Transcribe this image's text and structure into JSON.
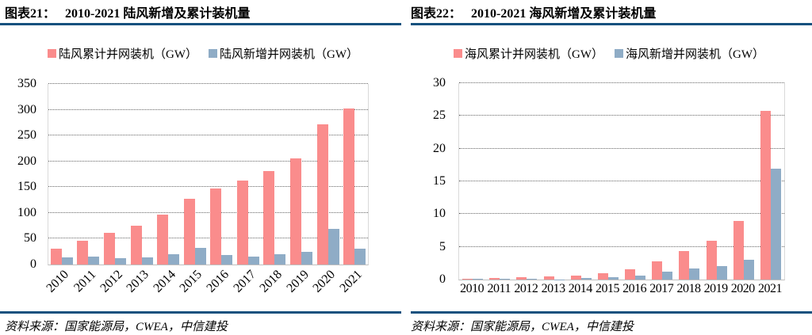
{
  "accent_rule_color": "#14517E",
  "charts": [
    {
      "title_label": "图表21：",
      "title_text": "2010-2021 陆风新增及累计装机量",
      "source": "资料来源：国家能源局，CWEA，中信建投",
      "chart_data": {
        "type": "bar",
        "categories": [
          "2010",
          "2011",
          "2012",
          "2013",
          "2014",
          "2015",
          "2016",
          "2017",
          "2018",
          "2019",
          "2020",
          "2021"
        ],
        "series": [
          {
            "name": "陆风累计并网装机（GW）",
            "color": "#FA8C8C",
            "values": [
              30,
              46,
              61,
              76,
              96,
              128,
              147,
              163,
              181,
              205,
              271,
              302
            ]
          },
          {
            "name": "陆风新增并网装机（GW）",
            "color": "#8FACC6",
            "values": [
              14,
              16,
              13,
              14,
              20,
              32,
              19,
              15,
              20,
              24,
              69,
              31
            ]
          }
        ],
        "title": "2010-2021 陆风新增及累计装机量",
        "xlabel": "",
        "ylabel": "",
        "ylim": [
          0,
          350
        ],
        "ytick_step": 50,
        "grid": "horizontal-dotted",
        "legend_position": "top-center",
        "x_label_rotation": -45
      }
    },
    {
      "title_label": "图表22：",
      "title_text": "2010-2021 海风新增及累计装机量",
      "source": "资料来源：国家能源局，CWEA，中信建投",
      "chart_data": {
        "type": "bar",
        "categories": [
          "2010",
          "2011",
          "2012",
          "2013",
          "2014",
          "2015",
          "2016",
          "2017",
          "2018",
          "2019",
          "2020",
          "2021"
        ],
        "series": [
          {
            "name": "海风累计并网装机（GW）",
            "color": "#FA8C8C",
            "values": [
              0.15,
              0.25,
              0.4,
              0.45,
              0.65,
              1.0,
              1.6,
              2.8,
              4.4,
              5.9,
              9.0,
              25.8
            ]
          },
          {
            "name": "海风新增并网装机（GW）",
            "color": "#8FACC6",
            "values": [
              0.1,
              0.1,
              0.15,
              0.05,
              0.25,
              0.35,
              0.6,
              1.2,
              1.65,
              2.0,
              3.05,
              16.9
            ]
          }
        ],
        "title": "2010-2021 海风新增及累计装机量",
        "xlabel": "",
        "ylabel": "",
        "ylim": [
          0,
          30
        ],
        "ytick_step": 5,
        "grid": "horizontal-dotted",
        "legend_position": "top-center",
        "x_label_rotation": 0
      }
    }
  ]
}
